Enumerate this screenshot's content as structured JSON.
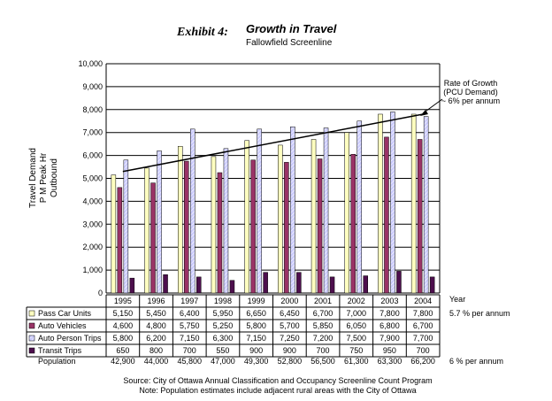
{
  "exhibit_label": "Exhibit 4:",
  "chart_data": {
    "type": "bar",
    "title": "Growth in Travel",
    "subtitle": "Fallowfield Screenline",
    "ylabel_lines": [
      "Travel Demand",
      "P M Peak Hr",
      "Outbound"
    ],
    "xlabel": "Year",
    "ylim": [
      0,
      10000
    ],
    "yticks": [
      "0",
      "1,000",
      "2,000",
      "3,000",
      "4,000",
      "5,000",
      "6,000",
      "7,000",
      "8,000",
      "9,000",
      "10,000"
    ],
    "grid": true,
    "categories": [
      "1995",
      "1996",
      "1997",
      "1998",
      "1999",
      "2000",
      "2001",
      "2002",
      "2003",
      "2004"
    ],
    "series": [
      {
        "name": "Pass Car Units",
        "color": "#ffffc0",
        "pattern": "solid",
        "values": [
          5150,
          5450,
          6400,
          5950,
          6650,
          6450,
          6700,
          7000,
          7800,
          7800
        ],
        "labels": [
          "5,150",
          "5,450",
          "6,400",
          "5,950",
          "6,650",
          "6,450",
          "6,700",
          "7,000",
          "7,800",
          "7,800"
        ],
        "note": "5.7 % per annum"
      },
      {
        "name": "Auto Vehicles",
        "color": "#993366",
        "pattern": "solid",
        "values": [
          4600,
          4800,
          5750,
          5250,
          5800,
          5700,
          5850,
          6050,
          6800,
          6700
        ],
        "labels": [
          "4,600",
          "4,800",
          "5,750",
          "5,250",
          "5,800",
          "5,700",
          "5,850",
          "6,050",
          "6,800",
          "6,700"
        ],
        "note": ""
      },
      {
        "name": "Auto Person Trips",
        "color": "#ccccff",
        "pattern": "hatch",
        "values": [
          5800,
          6200,
          7150,
          6300,
          7150,
          7250,
          7200,
          7500,
          7900,
          7700
        ],
        "labels": [
          "5,800",
          "6,200",
          "7,150",
          "6,300",
          "7,150",
          "7,250",
          "7,200",
          "7,500",
          "7,900",
          "7,700"
        ],
        "note": ""
      },
      {
        "name": "Transit Trips",
        "color": "#4d0f4d",
        "pattern": "solid",
        "values": [
          650,
          800,
          700,
          550,
          900,
          900,
          700,
          750,
          950,
          700
        ],
        "labels": [
          "650",
          "800",
          "700",
          "550",
          "900",
          "900",
          "700",
          "750",
          "950",
          "700"
        ],
        "note": ""
      }
    ],
    "population": {
      "name": "Population",
      "labels": [
        "42,900",
        "44,000",
        "45,800",
        "47,000",
        "49,300",
        "52,800",
        "56,500",
        "61,300",
        "63,300",
        "66,200"
      ],
      "note": "6 % per annum"
    },
    "trend_line": {
      "from": [
        1995,
        5300
      ],
      "to": [
        2004,
        7800
      ]
    },
    "annotation": [
      "Rate of Growth",
      "(PCU Demand)",
      "~ 6% per annum"
    ],
    "source_lines": [
      "Source: City of Ottawa Annual Classification and Occupancy Screenline Count Program",
      "Note: Population estimates include adjacent rural areas with the City of Ottawa"
    ]
  }
}
